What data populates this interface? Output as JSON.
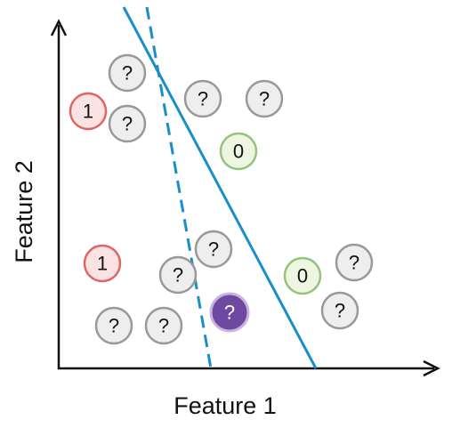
{
  "axes": {
    "x_label": "Feature 1",
    "y_label": "Feature 2"
  },
  "colors": {
    "axis": "#111111",
    "line": "#1a8ec9",
    "unlabeled_fill": "#eeeeee",
    "unlabeled_stroke": "#999999",
    "class1_fill": "#fbe3e3",
    "class1_stroke": "#e06666",
    "class0_fill": "#eef6e2",
    "class0_stroke": "#93c47d",
    "query_fill": "#6d4aa0",
    "query_stroke": "#c8b4e4"
  },
  "points": [
    {
      "kind": "unlabeled",
      "label": "?"
    },
    {
      "kind": "class1",
      "label": "1"
    },
    {
      "kind": "unlabeled",
      "label": "?"
    },
    {
      "kind": "unlabeled",
      "label": "?"
    },
    {
      "kind": "unlabeled",
      "label": "?"
    },
    {
      "kind": "class0",
      "label": "0"
    },
    {
      "kind": "class1",
      "label": "1"
    },
    {
      "kind": "unlabeled",
      "label": "?"
    },
    {
      "kind": "unlabeled",
      "label": "?"
    },
    {
      "kind": "class0",
      "label": "0"
    },
    {
      "kind": "unlabeled",
      "label": "?"
    },
    {
      "kind": "unlabeled",
      "label": "?"
    },
    {
      "kind": "unlabeled",
      "label": "?"
    },
    {
      "kind": "unlabeled",
      "label": "?"
    },
    {
      "kind": "query",
      "label": "?"
    }
  ],
  "boundaries": [
    {
      "style": "solid"
    },
    {
      "style": "dashed"
    }
  ]
}
